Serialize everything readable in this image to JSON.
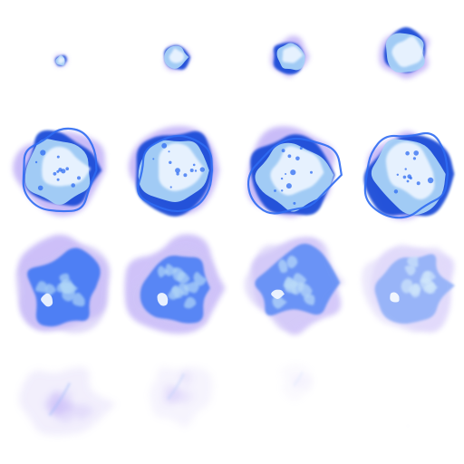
{
  "sprite_sheet": {
    "columns": 4,
    "rows": 4,
    "frame_count": 16,
    "colors": {
      "background": "#ffffff",
      "core_white": "#eef6ff",
      "light_blue": "#a9d2f7",
      "electric_blue": "#2f6cf2",
      "deep_blue": "#1f4ed8",
      "violet": "#8a6cf0",
      "lavender_smoke": "#c9bdf5"
    },
    "frames": [
      {
        "stage": "spark",
        "size": 0.1,
        "opacity": 1.0
      },
      {
        "stage": "ignite",
        "size": 0.22,
        "opacity": 1.0
      },
      {
        "stage": "ignite",
        "size": 0.3,
        "opacity": 1.0
      },
      {
        "stage": "ignite",
        "size": 0.4,
        "opacity": 1.0
      },
      {
        "stage": "burst",
        "size": 0.68,
        "opacity": 1.0
      },
      {
        "stage": "burst",
        "size": 0.72,
        "opacity": 1.0
      },
      {
        "stage": "burst",
        "size": 0.74,
        "opacity": 1.0
      },
      {
        "stage": "burst",
        "size": 0.74,
        "opacity": 1.0
      },
      {
        "stage": "dissipate",
        "size": 0.78,
        "opacity": 0.95
      },
      {
        "stage": "dissipate",
        "size": 0.78,
        "opacity": 0.9
      },
      {
        "stage": "dissipate",
        "size": 0.78,
        "opacity": 0.8
      },
      {
        "stage": "dissipate",
        "size": 0.76,
        "opacity": 0.55
      },
      {
        "stage": "smoke",
        "size": 0.7,
        "opacity": 0.45
      },
      {
        "stage": "smoke",
        "size": 0.55,
        "opacity": 0.3
      },
      {
        "stage": "smoke",
        "size": 0.3,
        "opacity": 0.15
      },
      {
        "stage": "empty",
        "size": 0.05,
        "opacity": 0.05
      }
    ]
  }
}
